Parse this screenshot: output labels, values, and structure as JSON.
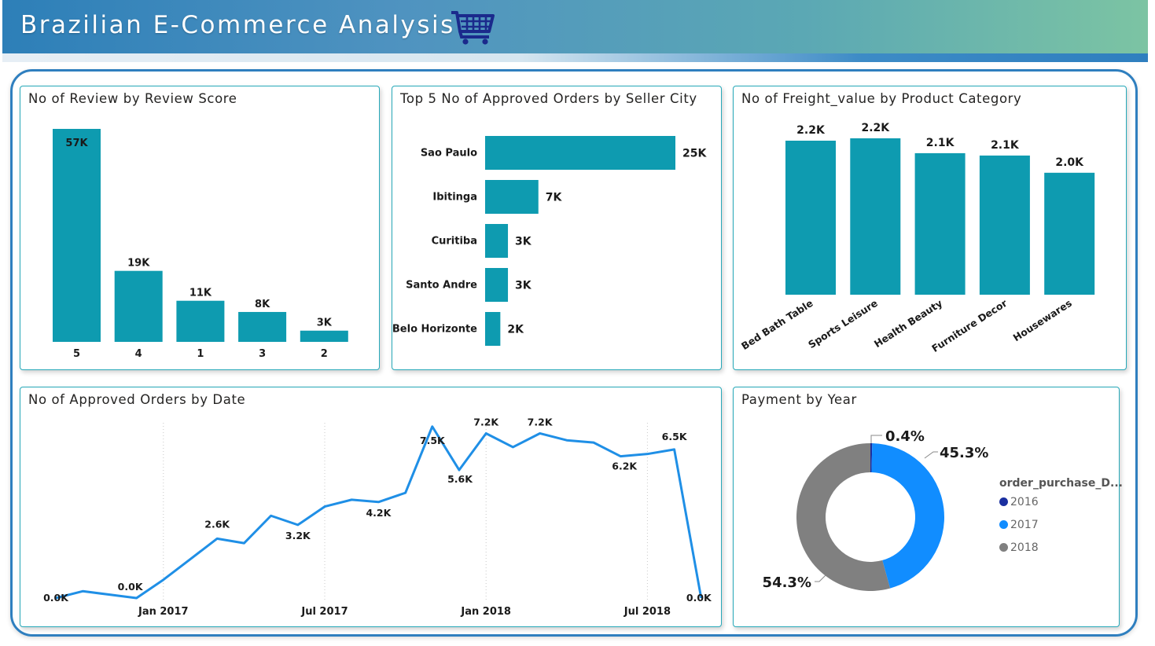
{
  "header": {
    "title": "Brazilian E-Commerce Analysis",
    "icon": "shopping-cart-icon"
  },
  "colors": {
    "bar": "#0e9bb0",
    "line": "#1f8fe6",
    "y2016": "#1a2fa0",
    "y2017": "#118dff",
    "y2018": "#808080"
  },
  "review_chart": {
    "title": "No of Review by Review Score",
    "chart_data": {
      "type": "bar",
      "categories": [
        "5",
        "4",
        "1",
        "3",
        "2"
      ],
      "values": [
        57,
        19,
        11,
        8,
        3
      ],
      "value_labels": [
        "57K",
        "19K",
        "11K",
        "8K",
        "3K"
      ]
    }
  },
  "city_chart": {
    "title": "Top 5 No of Approved Orders by Seller City",
    "chart_data": {
      "type": "bar",
      "orientation": "horizontal",
      "categories": [
        "Sao Paulo",
        "Ibitinga",
        "Curitiba",
        "Santo Andre",
        "Belo Horizonte"
      ],
      "values": [
        25,
        7,
        3,
        3,
        2
      ],
      "value_labels": [
        "25K",
        "7K",
        "3K",
        "3K",
        "2K"
      ]
    }
  },
  "freight_chart": {
    "title": "No of Freight_value by Product Category",
    "chart_data": {
      "type": "bar",
      "categories": [
        "Bed Bath Table",
        "Sports Leisure",
        "Health Beauty",
        "Furniture Decor",
        "Housewares"
      ],
      "values": [
        2.2,
        2.2,
        2.1,
        2.1,
        2.0
      ],
      "value_labels": [
        "2.2K",
        "2.2K",
        "2.1K",
        "2.1K",
        "2.0K"
      ]
    }
  },
  "orders_chart": {
    "title": "No of Approved Orders by Date",
    "chart_data": {
      "type": "line",
      "x_ticks": [
        "Jan 2017",
        "Jul 2017",
        "Jan 2018",
        "Jul 2018"
      ],
      "x": [
        "2016-09",
        "2016-10",
        "2016-11",
        "2016-12",
        "2017-01",
        "2017-02",
        "2017-03",
        "2017-04",
        "2017-05",
        "2017-06",
        "2017-07",
        "2017-08",
        "2017-09",
        "2017-10",
        "2017-11",
        "2017-12",
        "2018-01",
        "2018-02",
        "2018-03",
        "2018-04",
        "2018-05",
        "2018-06",
        "2018-07",
        "2018-08",
        "2018-09"
      ],
      "values": [
        0.0,
        0.3,
        0.15,
        0.0,
        0.8,
        1.7,
        2.6,
        2.4,
        3.6,
        3.2,
        4.0,
        4.3,
        4.2,
        4.6,
        7.5,
        5.6,
        7.2,
        6.6,
        7.2,
        6.9,
        6.8,
        6.2,
        6.3,
        6.5,
        0.0
      ],
      "data_labels": [
        {
          "index": 0,
          "text": "0.0K"
        },
        {
          "index": 3,
          "text": "0.0K"
        },
        {
          "index": 6,
          "text": "2.6K"
        },
        {
          "index": 9,
          "text": "3.2K"
        },
        {
          "index": 12,
          "text": "4.2K"
        },
        {
          "index": 14,
          "text": "7.5K"
        },
        {
          "index": 15,
          "text": "5.6K"
        },
        {
          "index": 16,
          "text": "7.2K"
        },
        {
          "index": 18,
          "text": "7.2K"
        },
        {
          "index": 21,
          "text": "6.2K"
        },
        {
          "index": 23,
          "text": "6.5K"
        },
        {
          "index": 24,
          "text": "0.0K"
        }
      ]
    }
  },
  "payment_chart": {
    "title": "Payment by Year",
    "legend_title": "order_purchase_D...",
    "chart_data": {
      "type": "pie",
      "labels": [
        "2016",
        "2017",
        "2018"
      ],
      "values": [
        0.4,
        45.3,
        54.3
      ],
      "value_labels": [
        "0.4%",
        "45.3%",
        "54.3%"
      ]
    }
  }
}
